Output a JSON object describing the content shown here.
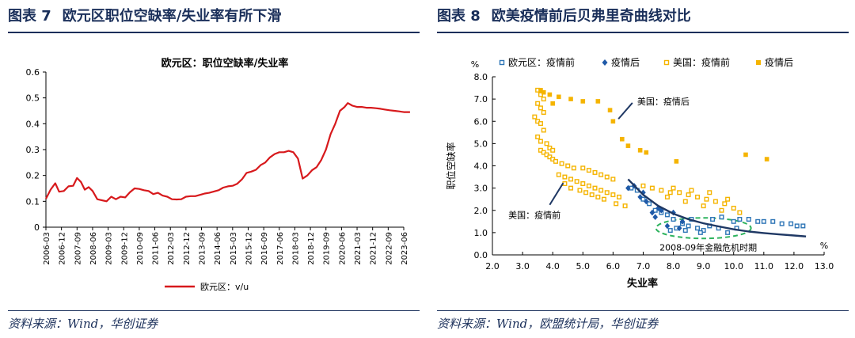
{
  "left": {
    "header_no": "图表 7",
    "header_title": "欧元区职位空缺率/失业率有所下滑",
    "source": "资料来源：Wind，华创证券",
    "colors": {
      "line": "#d7191c",
      "accent": "#1a2f5a"
    },
    "chart_data": {
      "type": "line",
      "title": "欧元区：职位空缺率/失业率",
      "xlabel": "",
      "ylabel": "",
      "ylim": [
        0,
        0.6
      ],
      "yticks": [
        "0",
        "0.1",
        "0.2",
        "0.3",
        "0.4",
        "0.5",
        "0.6"
      ],
      "categories": [
        "2006-03",
        "2006-12",
        "2007-09",
        "2008-06",
        "2009-03",
        "2009-12",
        "2010-09",
        "2011-06",
        "2012-03",
        "2012-12",
        "2013-09",
        "2014-06",
        "2015-03",
        "2015-12",
        "2016-09",
        "2017-06",
        "2018-03",
        "2018-12",
        "2019-09",
        "2020-06",
        "2021-03",
        "2021-12",
        "2022-09",
        "2023-06"
      ],
      "legend": "bottom",
      "series": [
        {
          "name": "欧元区：v/u",
          "x": [
            0,
            0.3,
            0.6,
            0.85,
            1.15,
            1.45,
            1.75,
            2.0,
            2.25,
            2.5,
            2.75,
            3.0,
            3.3,
            3.6,
            3.9,
            4.2,
            4.5,
            4.8,
            5.1,
            5.4,
            5.7,
            6.0,
            6.3,
            6.6,
            6.9,
            7.2,
            7.5,
            7.8,
            8.1,
            8.4,
            8.7,
            9.0,
            9.3,
            9.6,
            9.9,
            10.2,
            10.5,
            10.8,
            11.1,
            11.4,
            11.7,
            12.0,
            12.3,
            12.6,
            12.9,
            13.2,
            13.5,
            13.8,
            14.1,
            14.4,
            14.7,
            15.0,
            15.3,
            15.6,
            15.9,
            16.2,
            16.5,
            16.8,
            17.1,
            17.4,
            17.7,
            18.0,
            18.3,
            18.6,
            18.9,
            19.2,
            19.4,
            19.7,
            20.0,
            20.3,
            20.6,
            20.9,
            21.2,
            21.5,
            21.8,
            22.1,
            22.4,
            22.7,
            23.0,
            23.4
          ],
          "values": [
            0.11,
            0.145,
            0.17,
            0.137,
            0.14,
            0.158,
            0.16,
            0.19,
            0.175,
            0.145,
            0.155,
            0.14,
            0.108,
            0.104,
            0.1,
            0.118,
            0.108,
            0.118,
            0.115,
            0.135,
            0.15,
            0.148,
            0.143,
            0.14,
            0.128,
            0.133,
            0.122,
            0.118,
            0.108,
            0.107,
            0.108,
            0.118,
            0.12,
            0.12,
            0.125,
            0.13,
            0.133,
            0.138,
            0.143,
            0.153,
            0.158,
            0.16,
            0.168,
            0.185,
            0.21,
            0.215,
            0.222,
            0.24,
            0.25,
            0.27,
            0.283,
            0.29,
            0.29,
            0.295,
            0.29,
            0.265,
            0.188,
            0.2,
            0.22,
            0.232,
            0.26,
            0.3,
            0.36,
            0.4,
            0.45,
            0.465,
            0.48,
            0.47,
            0.465,
            0.465,
            0.462,
            0.462,
            0.46,
            0.458,
            0.455,
            0.452,
            0.45,
            0.448,
            0.445,
            0.445
          ]
        }
      ]
    }
  },
  "right": {
    "header_no": "图表 8",
    "header_title": "欧美疫情前后贝弗里奇曲线对比",
    "source": "资料来源：Wind，欧盟统计局，华创证券",
    "colors": {
      "eu_pre": "#2e75b6",
      "eu_post": "#1f5aa8",
      "us_pre": "#f5b400",
      "us_post": "#f5b400",
      "curve": "#1f3864",
      "ellipse": "#2eb35e",
      "arrow": "#1f3864"
    },
    "chart_data": {
      "type": "scatter",
      "xlabel": "失业率",
      "ylabel": "职位空缺率",
      "x_unit": "%",
      "y_unit": "%",
      "xlim": [
        2.0,
        13.0
      ],
      "ylim": [
        0.0,
        8.0
      ],
      "xticks": [
        "2.0",
        "3.0",
        "4.0",
        "5.0",
        "6.0",
        "7.0",
        "8.0",
        "9.0",
        "10.0",
        "11.0",
        "12.0",
        "13.0"
      ],
      "yticks": [
        "0.0",
        "1.0",
        "2.0",
        "3.0",
        "4.0",
        "5.0",
        "6.0",
        "7.0",
        "8.0"
      ],
      "legend": "top",
      "annotations": [
        {
          "text": "美国：疫情后",
          "x": 6.8,
          "y": 6.9
        },
        {
          "text": "美国：疫情前",
          "x": 3.5,
          "y": 1.8
        },
        {
          "text": "2008-09年金融危机时期",
          "x": 9.0,
          "y": 0.3
        }
      ],
      "series": [
        {
          "name": "欧元区：疫情前",
          "marker": "hollow-square",
          "points": [
            [
              6.6,
              3.0
            ],
            [
              6.8,
              2.9
            ],
            [
              7.0,
              2.5
            ],
            [
              7.2,
              2.3
            ],
            [
              7.4,
              2.0
            ],
            [
              7.6,
              1.9
            ],
            [
              7.8,
              1.8
            ],
            [
              8.0,
              1.6
            ],
            [
              8.3,
              1.4
            ],
            [
              8.5,
              1.3
            ],
            [
              8.8,
              1.2
            ],
            [
              9.0,
              1.1
            ],
            [
              9.2,
              1.3
            ],
            [
              9.5,
              1.2
            ],
            [
              9.8,
              1.0
            ],
            [
              10.0,
              1.5
            ],
            [
              10.2,
              1.6
            ],
            [
              10.5,
              1.6
            ],
            [
              10.8,
              1.5
            ],
            [
              11.0,
              1.5
            ],
            [
              11.3,
              1.5
            ],
            [
              11.6,
              1.4
            ],
            [
              11.9,
              1.4
            ],
            [
              12.1,
              1.3
            ],
            [
              12.3,
              1.3
            ],
            [
              8.6,
              1.6
            ],
            [
              9.3,
              1.6
            ],
            [
              9.6,
              1.7
            ],
            [
              8.1,
              1.2
            ],
            [
              8.4,
              1.1
            ],
            [
              7.9,
              1.1
            ],
            [
              8.9,
              1.0
            ],
            [
              10.1,
              1.2
            ]
          ]
        },
        {
          "name": "疫情后",
          "marker": "diamond",
          "points": [
            [
              6.5,
              3.0
            ],
            [
              6.7,
              3.1
            ],
            [
              7.0,
              2.8
            ],
            [
              6.9,
              2.6
            ],
            [
              7.1,
              2.4
            ],
            [
              7.5,
              2.1
            ],
            [
              7.3,
              1.9
            ],
            [
              7.4,
              1.7
            ],
            [
              8.0,
              1.9
            ],
            [
              8.3,
              1.5
            ],
            [
              7.8,
              1.3
            ],
            [
              8.2,
              1.2
            ],
            [
              7.6,
              2.0
            ]
          ]
        },
        {
          "name": "美国：疫情前",
          "marker": "hollow-square",
          "points": [
            [
              3.5,
              7.4
            ],
            [
              3.6,
              7.2
            ],
            [
              3.7,
              7.0
            ],
            [
              3.5,
              6.8
            ],
            [
              3.6,
              6.6
            ],
            [
              3.7,
              6.4
            ],
            [
              3.4,
              6.2
            ],
            [
              3.5,
              6.0
            ],
            [
              3.6,
              5.9
            ],
            [
              3.7,
              5.6
            ],
            [
              3.5,
              5.3
            ],
            [
              3.6,
              5.1
            ],
            [
              3.8,
              5.0
            ],
            [
              3.9,
              4.8
            ],
            [
              4.0,
              4.7
            ],
            [
              3.6,
              4.7
            ],
            [
              3.7,
              4.6
            ],
            [
              3.8,
              4.5
            ],
            [
              3.9,
              4.4
            ],
            [
              4.0,
              4.3
            ],
            [
              4.1,
              4.2
            ],
            [
              4.3,
              4.1
            ],
            [
              4.5,
              4.0
            ],
            [
              4.7,
              3.9
            ],
            [
              5.0,
              3.9
            ],
            [
              5.2,
              3.8
            ],
            [
              5.4,
              3.7
            ],
            [
              5.6,
              3.6
            ],
            [
              5.8,
              3.5
            ],
            [
              6.0,
              3.4
            ],
            [
              4.2,
              3.6
            ],
            [
              4.4,
              3.5
            ],
            [
              4.6,
              3.4
            ],
            [
              4.8,
              3.3
            ],
            [
              5.0,
              3.2
            ],
            [
              5.2,
              3.1
            ],
            [
              5.4,
              3.0
            ],
            [
              5.6,
              2.9
            ],
            [
              5.8,
              2.8
            ],
            [
              6.0,
              2.7
            ],
            [
              6.2,
              2.6
            ],
            [
              4.4,
              3.2
            ],
            [
              4.6,
              3.0
            ],
            [
              4.9,
              2.9
            ],
            [
              5.1,
              2.8
            ],
            [
              5.3,
              2.7
            ],
            [
              5.5,
              2.6
            ],
            [
              5.7,
              2.5
            ],
            [
              6.1,
              2.3
            ],
            [
              6.4,
              2.2
            ],
            [
              7.0,
              3.1
            ],
            [
              7.3,
              3.0
            ],
            [
              7.6,
              2.9
            ],
            [
              7.9,
              2.8
            ],
            [
              8.2,
              2.8
            ],
            [
              8.5,
              2.7
            ],
            [
              8.8,
              2.6
            ],
            [
              9.1,
              2.5
            ],
            [
              9.4,
              2.4
            ],
            [
              9.7,
              2.3
            ],
            [
              10.0,
              2.1
            ],
            [
              10.2,
              1.9
            ],
            [
              7.8,
              2.6
            ],
            [
              8.4,
              2.4
            ],
            [
              9.0,
              2.2
            ],
            [
              9.6,
              2.0
            ],
            [
              8.0,
              3.0
            ],
            [
              8.6,
              2.9
            ],
            [
              9.2,
              2.8
            ],
            [
              9.8,
              2.5
            ]
          ]
        },
        {
          "name": "疫情后",
          "marker": "square",
          "points": [
            [
              3.6,
              7.4
            ],
            [
              3.9,
              7.2
            ],
            [
              4.2,
              7.1
            ],
            [
              4.6,
              7.0
            ],
            [
              5.0,
              6.9
            ],
            [
              5.5,
              6.9
            ],
            [
              5.9,
              6.5
            ],
            [
              6.0,
              6.0
            ],
            [
              6.3,
              5.2
            ],
            [
              6.5,
              4.9
            ],
            [
              6.9,
              4.7
            ],
            [
              7.1,
              4.6
            ],
            [
              8.1,
              4.2
            ],
            [
              10.4,
              4.5
            ],
            [
              11.1,
              4.3
            ],
            [
              3.7,
              7.3
            ],
            [
              4.0,
              6.8
            ]
          ]
        },
        {
          "name": "",
          "type": "line",
          "points": [
            [
              6.5,
              3.4
            ],
            [
              7.0,
              2.7
            ],
            [
              7.5,
              2.2
            ],
            [
              8.0,
              1.85
            ],
            [
              8.5,
              1.6
            ],
            [
              9.0,
              1.42
            ],
            [
              9.5,
              1.28
            ],
            [
              10.0,
              1.15
            ],
            [
              10.5,
              1.05
            ],
            [
              11.0,
              0.98
            ],
            [
              11.5,
              0.92
            ],
            [
              12.0,
              0.87
            ],
            [
              12.4,
              0.83
            ]
          ]
        }
      ]
    }
  }
}
